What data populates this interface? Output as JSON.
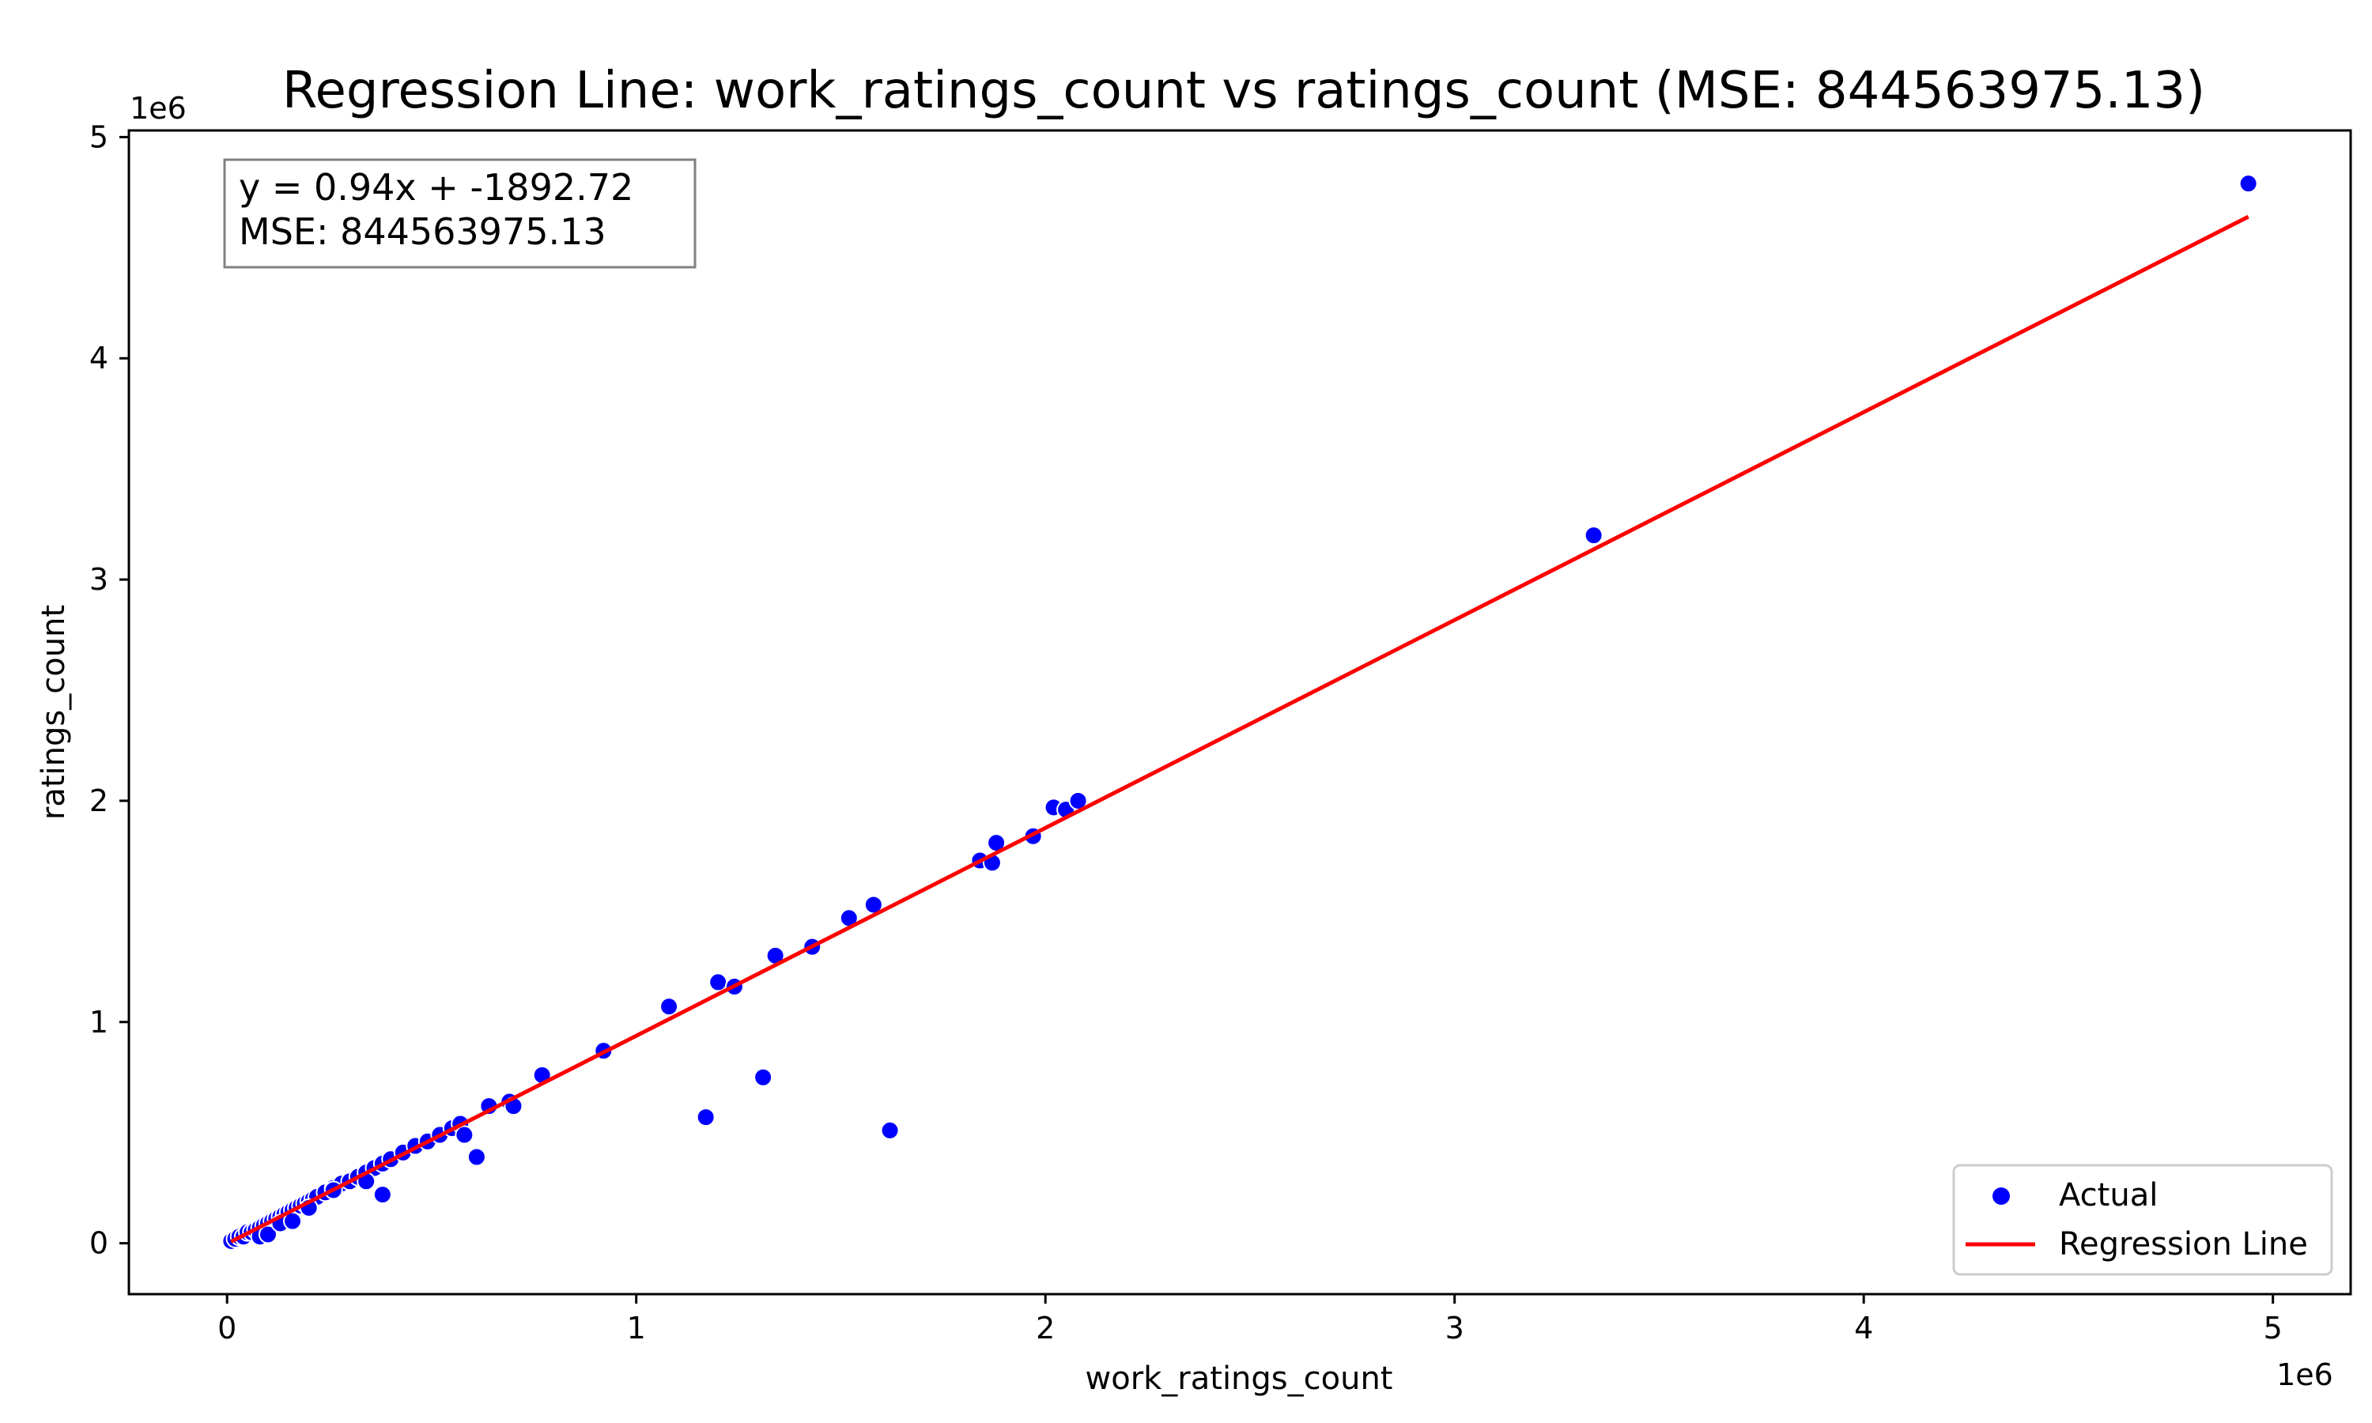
{
  "chart_data": {
    "type": "scatter",
    "title": "Regression Line: work_ratings_count vs ratings_count (MSE: 844563975.13)",
    "xlabel": "work_ratings_count",
    "ylabel": "ratings_count",
    "x_offset_label": "1e6",
    "y_offset_label": "1e6",
    "xlim": [
      -0.24,
      5.19
    ],
    "ylim": [
      -0.23,
      5.03
    ],
    "x_ticks": [
      0,
      1,
      2,
      3,
      4,
      5
    ],
    "x_tick_labels": [
      "0",
      "1",
      "2",
      "3",
      "4",
      "5"
    ],
    "y_ticks": [
      0,
      1,
      2,
      3,
      4,
      5
    ],
    "y_tick_labels": [
      "0",
      "1",
      "2",
      "3",
      "4",
      "5"
    ],
    "grid": false,
    "legend_position": "bottom-right",
    "annotation": {
      "lines": [
        "y = 0.94x + -1892.72",
        "MSE: 844563975.13"
      ],
      "position": "top-left"
    },
    "series": [
      {
        "name": "Actual",
        "kind": "scatter",
        "color": "#0000ff",
        "points": [
          [
            0.01,
            0.01
          ],
          [
            0.02,
            0.02
          ],
          [
            0.03,
            0.03
          ],
          [
            0.04,
            0.03
          ],
          [
            0.05,
            0.05
          ],
          [
            0.06,
            0.05
          ],
          [
            0.07,
            0.06
          ],
          [
            0.08,
            0.07
          ],
          [
            0.09,
            0.08
          ],
          [
            0.1,
            0.09
          ],
          [
            0.11,
            0.1
          ],
          [
            0.12,
            0.11
          ],
          [
            0.13,
            0.12
          ],
          [
            0.14,
            0.13
          ],
          [
            0.15,
            0.14
          ],
          [
            0.16,
            0.15
          ],
          [
            0.17,
            0.16
          ],
          [
            0.18,
            0.17
          ],
          [
            0.19,
            0.18
          ],
          [
            0.2,
            0.19
          ],
          [
            0.21,
            0.2
          ],
          [
            0.22,
            0.21
          ],
          [
            0.24,
            0.23
          ],
          [
            0.26,
            0.25
          ],
          [
            0.28,
            0.27
          ],
          [
            0.3,
            0.28
          ],
          [
            0.32,
            0.3
          ],
          [
            0.34,
            0.32
          ],
          [
            0.36,
            0.34
          ],
          [
            0.38,
            0.36
          ],
          [
            0.4,
            0.38
          ],
          [
            0.43,
            0.41
          ],
          [
            0.46,
            0.44
          ],
          [
            0.49,
            0.46
          ],
          [
            0.52,
            0.49
          ],
          [
            0.55,
            0.52
          ],
          [
            0.57,
            0.54
          ],
          [
            0.08,
            0.03
          ],
          [
            0.1,
            0.04
          ],
          [
            0.13,
            0.09
          ],
          [
            0.16,
            0.1
          ],
          [
            0.2,
            0.16
          ],
          [
            0.26,
            0.24
          ],
          [
            0.34,
            0.28
          ],
          [
            0.38,
            0.22
          ],
          [
            0.58,
            0.49
          ],
          [
            0.61,
            0.39
          ],
          [
            0.64,
            0.62
          ],
          [
            0.69,
            0.64
          ],
          [
            0.7,
            0.62
          ],
          [
            0.77,
            0.76
          ],
          [
            0.92,
            0.87
          ],
          [
            1.08,
            1.07
          ],
          [
            1.17,
            0.57
          ],
          [
            1.2,
            1.18
          ],
          [
            1.24,
            1.16
          ],
          [
            1.31,
            0.75
          ],
          [
            1.34,
            1.3
          ],
          [
            1.43,
            1.34
          ],
          [
            1.52,
            1.47
          ],
          [
            1.58,
            1.53
          ],
          [
            1.62,
            0.51
          ],
          [
            1.84,
            1.73
          ],
          [
            1.87,
            1.72
          ],
          [
            1.88,
            1.81
          ],
          [
            1.97,
            1.84
          ],
          [
            2.02,
            1.97
          ],
          [
            2.05,
            1.96
          ],
          [
            2.08,
            2.0
          ],
          [
            3.34,
            3.2
          ],
          [
            4.94,
            4.79
          ]
        ]
      },
      {
        "name": "Regression Line",
        "kind": "line",
        "color": "#ff0000",
        "x": [
          0.01,
          4.94
        ],
        "y": [
          0.0075,
          4.64
        ]
      }
    ]
  }
}
